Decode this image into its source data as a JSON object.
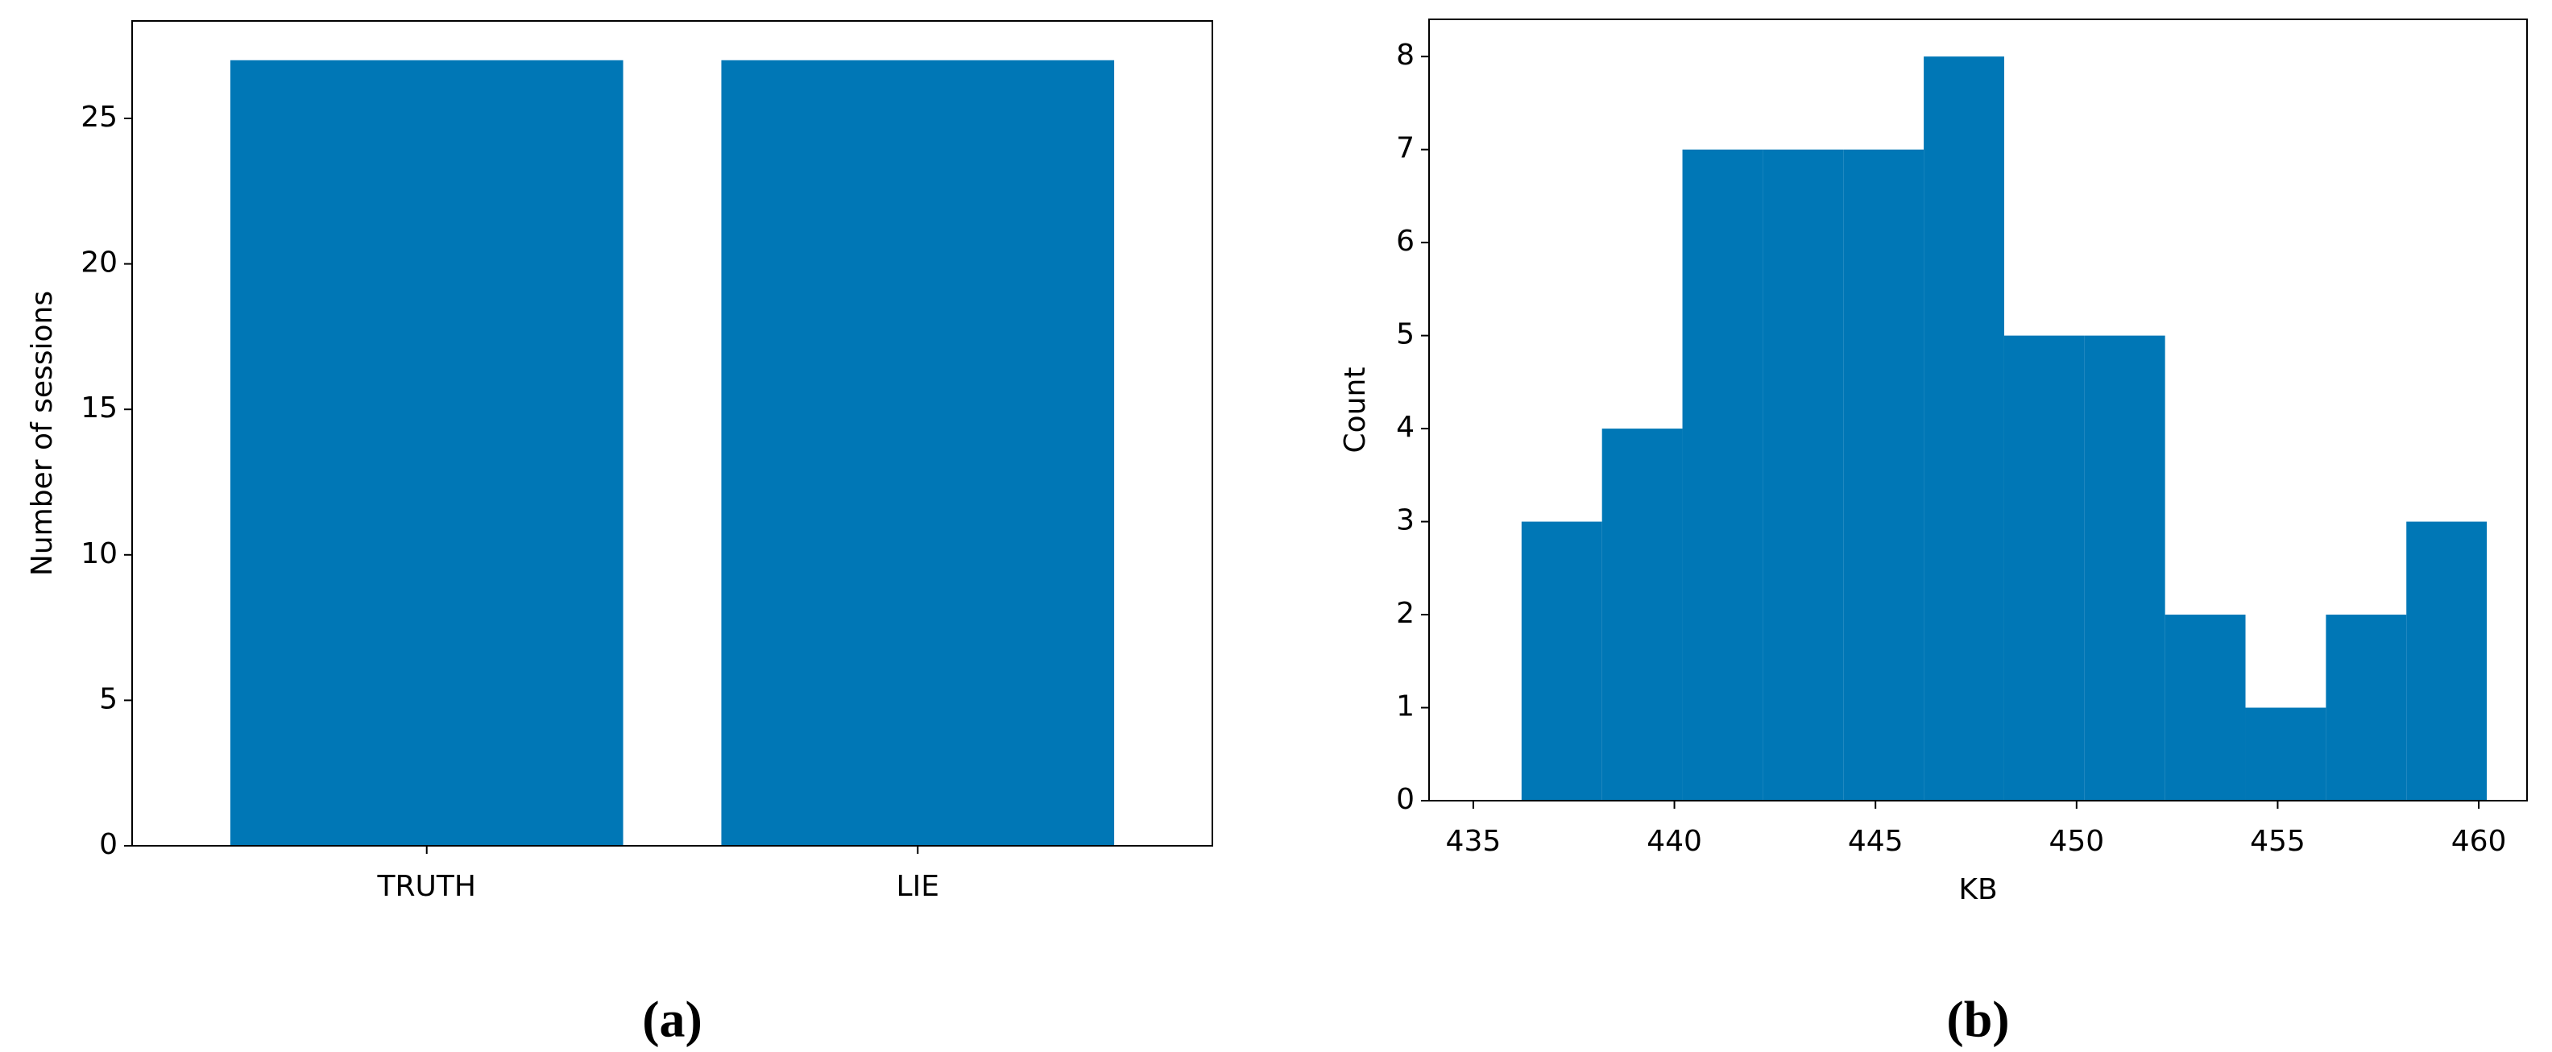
{
  "chart_data": [
    {
      "type": "bar",
      "caption": "(a)",
      "ylabel": "Number of sessions",
      "categories": [
        "TRUTH",
        "LIE"
      ],
      "values": [
        27,
        27
      ],
      "color": "#0077b6",
      "ylim": [
        0,
        28.35
      ],
      "yticks": [
        0,
        5,
        10,
        15,
        20,
        25
      ]
    },
    {
      "type": "histogram",
      "caption": "(b)",
      "xlabel": "KB",
      "ylabel": "Count",
      "bins": [
        436.2,
        438.2,
        440.2,
        442.2,
        444.2,
        446.2,
        448.2,
        450.2,
        452.2,
        454.2,
        456.2,
        458.2,
        460.2
      ],
      "values": [
        3,
        4,
        7,
        7,
        7,
        8,
        5,
        5,
        2,
        1,
        2,
        3
      ],
      "color": "#0077b6",
      "xlim": [
        433.9,
        461.2
      ],
      "xticks": [
        435,
        440,
        445,
        450,
        455,
        460
      ],
      "ylim": [
        0,
        8.4
      ],
      "yticks": [
        0,
        1,
        2,
        3,
        4,
        5,
        6,
        7,
        8
      ]
    }
  ]
}
